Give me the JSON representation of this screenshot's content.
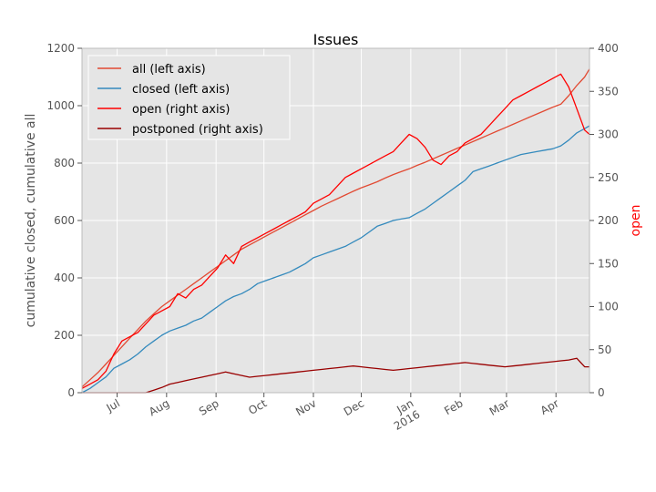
{
  "chart_data": {
    "type": "line",
    "title": "Issues",
    "ylabel_left": "cumulative closed, cumulative all",
    "ylabel_right": "open",
    "ylim_left": [
      0,
      1200
    ],
    "ylim_right": [
      0,
      400
    ],
    "yticks_left": [
      0,
      200,
      400,
      600,
      800,
      1000,
      1200
    ],
    "yticks_right": [
      0,
      50,
      100,
      150,
      200,
      250,
      300,
      350,
      400
    ],
    "xlim": [
      0,
      318
    ],
    "xticks": [
      {
        "x": 22,
        "label": "Jul"
      },
      {
        "x": 53,
        "label": "Aug"
      },
      {
        "x": 84,
        "label": "Sep"
      },
      {
        "x": 114,
        "label": "Oct"
      },
      {
        "x": 145,
        "label": "Nov"
      },
      {
        "x": 175,
        "label": "Dec"
      },
      {
        "x": 206,
        "label": "Jan",
        "sublabel": "2016"
      },
      {
        "x": 237,
        "label": "Feb"
      },
      {
        "x": 266,
        "label": "Mar"
      },
      {
        "x": 297,
        "label": "Apr"
      }
    ],
    "grid": true,
    "legend_position": "top-left",
    "series": [
      {
        "name": "all (left axis)",
        "axis": "left",
        "color": "#e24a33",
        "x": [
          0,
          5,
          10,
          15,
          20,
          25,
          30,
          35,
          40,
          45,
          50,
          55,
          60,
          65,
          70,
          75,
          80,
          85,
          90,
          95,
          100,
          105,
          110,
          115,
          120,
          125,
          130,
          135,
          140,
          145,
          150,
          155,
          160,
          165,
          170,
          175,
          180,
          185,
          190,
          195,
          200,
          205,
          210,
          215,
          220,
          225,
          230,
          235,
          240,
          245,
          250,
          255,
          260,
          265,
          270,
          275,
          280,
          285,
          290,
          295,
          300,
          305,
          310,
          315,
          318
        ],
        "y": [
          20,
          45,
          70,
          100,
          130,
          160,
          190,
          220,
          250,
          275,
          300,
          320,
          340,
          360,
          380,
          400,
          420,
          440,
          460,
          480,
          500,
          515,
          530,
          545,
          560,
          575,
          590,
          605,
          620,
          635,
          650,
          663,
          676,
          689,
          702,
          714,
          724,
          735,
          748,
          760,
          770,
          780,
          792,
          803,
          815,
          827,
          839,
          851,
          863,
          875,
          887,
          899,
          911,
          923,
          935,
          947,
          959,
          971,
          983,
          995,
          1005,
          1035,
          1070,
          1100,
          1128
        ]
      },
      {
        "name": "closed (left axis)",
        "axis": "left",
        "color": "#348abd",
        "x": [
          0,
          5,
          10,
          15,
          20,
          25,
          30,
          35,
          40,
          45,
          50,
          55,
          60,
          65,
          70,
          75,
          80,
          85,
          90,
          95,
          100,
          105,
          110,
          115,
          120,
          125,
          130,
          135,
          140,
          145,
          150,
          155,
          160,
          165,
          170,
          175,
          180,
          185,
          190,
          195,
          200,
          205,
          210,
          215,
          220,
          225,
          230,
          235,
          240,
          245,
          250,
          255,
          260,
          265,
          270,
          275,
          280,
          285,
          290,
          295,
          300,
          305,
          310,
          315,
          318
        ],
        "y": [
          0,
          15,
          35,
          55,
          85,
          100,
          115,
          135,
          160,
          180,
          200,
          215,
          225,
          235,
          250,
          260,
          280,
          300,
          320,
          335,
          345,
          360,
          380,
          390,
          400,
          410,
          420,
          435,
          450,
          470,
          480,
          490,
          500,
          510,
          525,
          540,
          560,
          580,
          590,
          600,
          605,
          610,
          625,
          640,
          660,
          680,
          700,
          720,
          740,
          770,
          780,
          790,
          800,
          810,
          820,
          830,
          835,
          840,
          845,
          850,
          860,
          880,
          905,
          920,
          930
        ]
      },
      {
        "name": "open (right axis)",
        "axis": "right",
        "color": "#ff0000",
        "x": [
          0,
          5,
          10,
          15,
          20,
          25,
          30,
          35,
          40,
          45,
          50,
          55,
          60,
          65,
          70,
          75,
          80,
          85,
          90,
          95,
          100,
          105,
          110,
          115,
          120,
          125,
          130,
          135,
          140,
          145,
          150,
          155,
          160,
          165,
          170,
          175,
          180,
          185,
          190,
          195,
          200,
          205,
          210,
          215,
          220,
          225,
          230,
          235,
          240,
          245,
          250,
          255,
          260,
          265,
          270,
          275,
          280,
          285,
          290,
          295,
          300,
          305,
          310,
          315,
          318
        ],
        "y": [
          5,
          10,
          15,
          25,
          45,
          60,
          65,
          70,
          80,
          90,
          95,
          100,
          115,
          110,
          120,
          125,
          135,
          145,
          160,
          150,
          170,
          175,
          180,
          185,
          190,
          195,
          200,
          205,
          210,
          220,
          225,
          230,
          240,
          250,
          255,
          260,
          265,
          270,
          275,
          280,
          290,
          300,
          295,
          285,
          270,
          265,
          275,
          280,
          290,
          295,
          300,
          310,
          320,
          330,
          340,
          345,
          350,
          355,
          360,
          365,
          370,
          355,
          330,
          305,
          300
        ]
      },
      {
        "name": "postponed (right axis)",
        "axis": "right",
        "color": "#990000",
        "x": [
          0,
          5,
          10,
          15,
          20,
          25,
          30,
          35,
          40,
          45,
          50,
          55,
          60,
          65,
          70,
          75,
          80,
          85,
          90,
          95,
          100,
          105,
          110,
          115,
          120,
          125,
          130,
          135,
          140,
          145,
          150,
          155,
          160,
          165,
          170,
          175,
          180,
          185,
          190,
          195,
          200,
          205,
          210,
          215,
          220,
          225,
          230,
          235,
          240,
          245,
          250,
          255,
          260,
          265,
          270,
          275,
          280,
          285,
          290,
          295,
          300,
          305,
          310,
          315,
          318
        ],
        "y": [
          0,
          0,
          0,
          0,
          0,
          0,
          0,
          0,
          0,
          3,
          6,
          10,
          12,
          14,
          16,
          18,
          20,
          22,
          24,
          22,
          20,
          18,
          19,
          20,
          21,
          22,
          23,
          24,
          25,
          26,
          27,
          28,
          29,
          30,
          31,
          30,
          29,
          28,
          27,
          26,
          27,
          28,
          29,
          30,
          31,
          32,
          33,
          34,
          35,
          34,
          33,
          32,
          31,
          30,
          31,
          32,
          33,
          34,
          35,
          36,
          37,
          38,
          40,
          30,
          30
        ]
      }
    ]
  }
}
